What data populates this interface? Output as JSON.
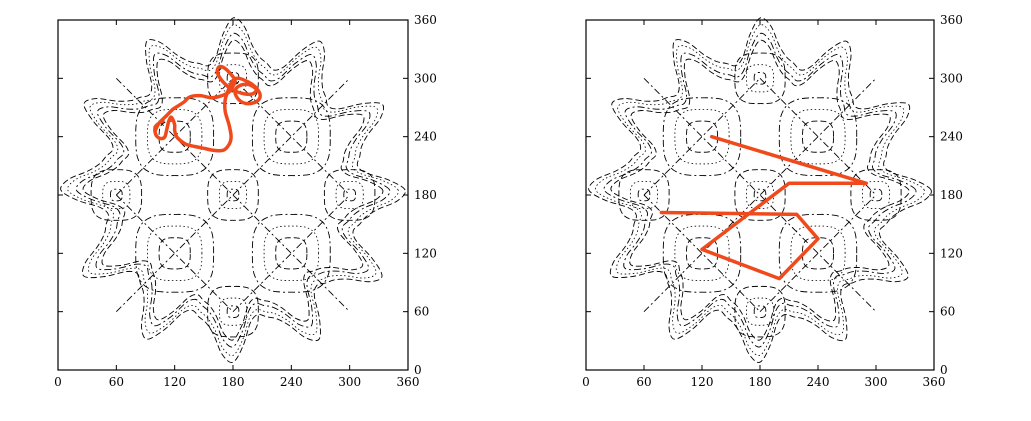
{
  "chart_data": [
    {
      "type": "line",
      "title": "",
      "xlabel": "",
      "ylabel": "",
      "xlim": [
        0,
        360
      ],
      "ylim": [
        0,
        360
      ],
      "x_ticks": [
        "0",
        "60",
        "120",
        "180",
        "240",
        "300",
        "360"
      ],
      "y_ticks": [
        "0",
        "60",
        "120",
        "180",
        "240",
        "300",
        "360"
      ],
      "y_axis_side": "right",
      "background": "contour map",
      "line_color": "#f04a1c",
      "series": [
        {
          "style": "smooth",
          "x": [
            100,
            104,
            112,
            118,
            124,
            130,
            134,
            140,
            148,
            158,
            168,
            176,
            180,
            182,
            178,
            172,
            166,
            164,
            170,
            180,
            192,
            200,
            204,
            200,
            194,
            186,
            182,
            186,
            194,
            204,
            208,
            204,
            196,
            186,
            180,
            176,
            172,
            172,
            176,
            178,
            176,
            170,
            160,
            150,
            140,
            132,
            126,
            122,
            120,
            120,
            118,
            116,
            114,
            112,
            110,
            106,
            102,
            100,
            100,
            104,
            108
          ],
          "y": [
            246,
            254,
            262,
            268,
            272,
            276,
            280,
            282,
            282,
            280,
            282,
            286,
            292,
            298,
            304,
            310,
            312,
            306,
            296,
            288,
            284,
            284,
            288,
            292,
            294,
            292,
            286,
            278,
            274,
            276,
            282,
            290,
            296,
            300,
            298,
            290,
            278,
            266,
            252,
            240,
            232,
            226,
            226,
            228,
            230,
            232,
            236,
            240,
            246,
            252,
            258,
            260,
            256,
            248,
            240,
            238,
            240,
            244,
            250,
            254,
            256
          ]
        },
        {
          "style": "polyline",
          "x": [
            130,
            290,
            210,
            120,
            200,
            240,
            218,
            78
          ],
          "y": [
            240,
            192,
            192,
            124,
            94,
            135,
            160,
            162
          ]
        }
      ]
    }
  ]
}
